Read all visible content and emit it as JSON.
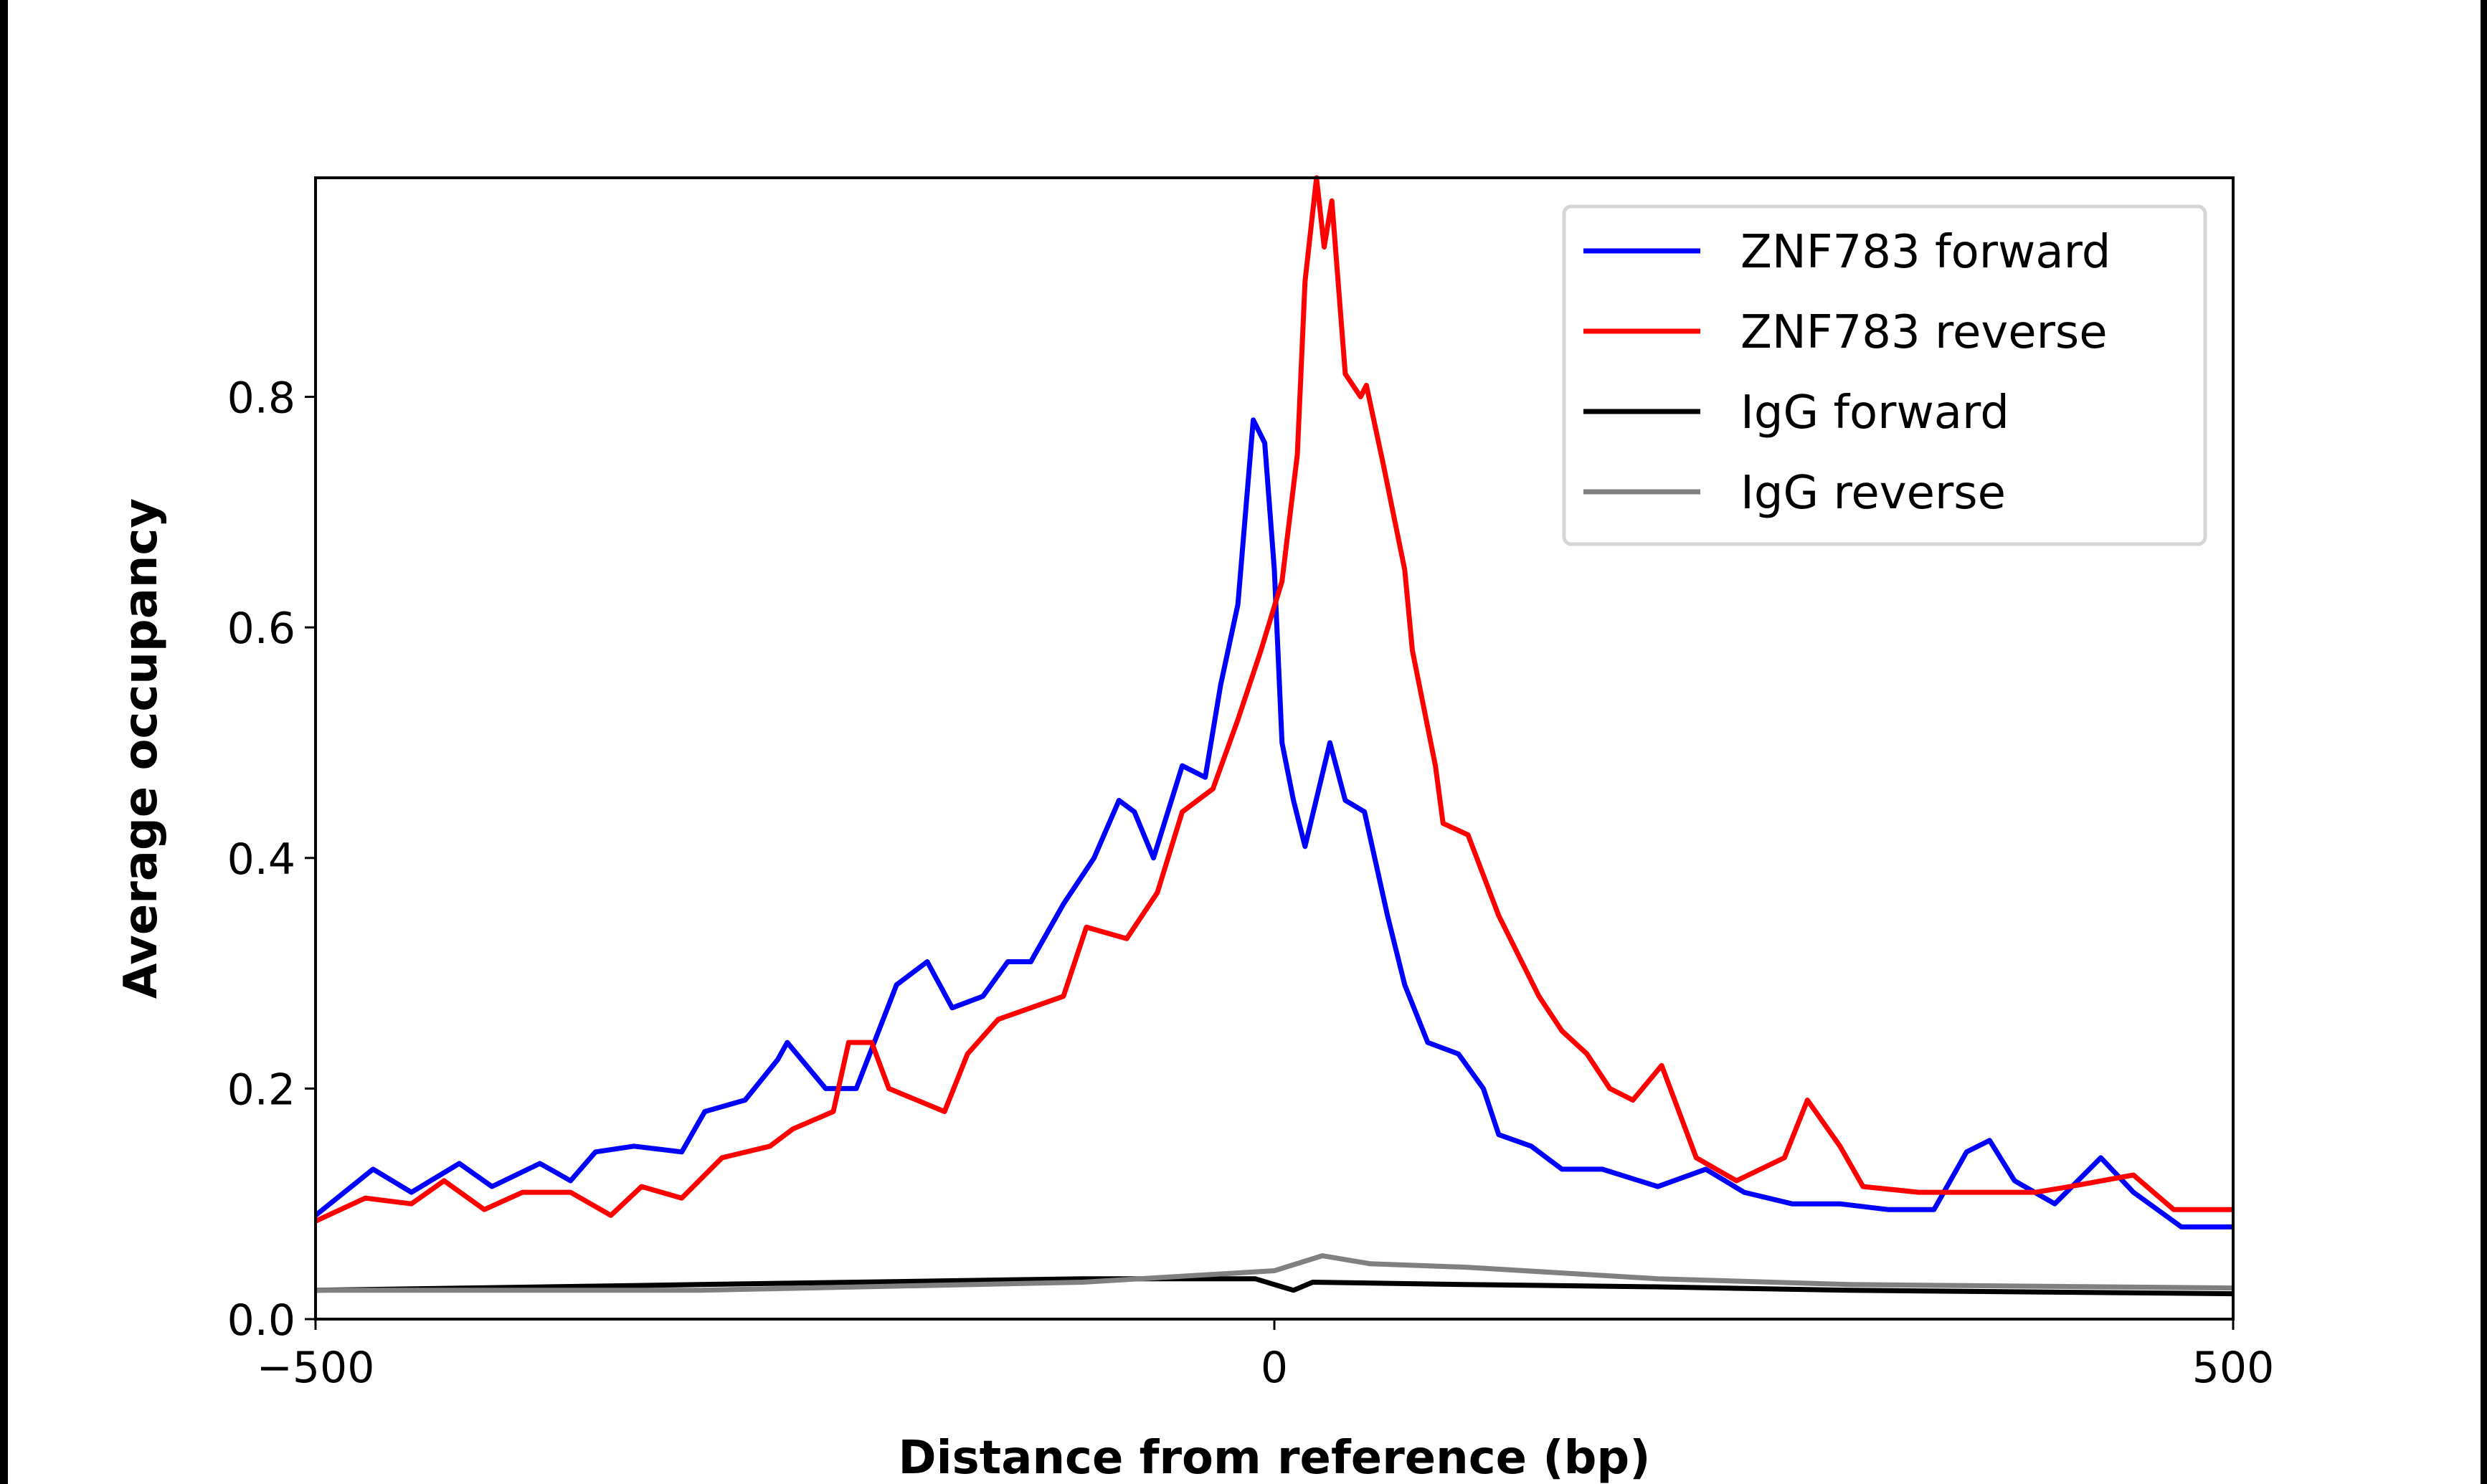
{
  "chart_data": {
    "type": "line",
    "title": "",
    "xlabel": "Distance from reference (bp)",
    "ylabel": "Average occupancy",
    "xlim": [
      -500,
      500
    ],
    "ylim": [
      0,
      0.99
    ],
    "xticks": [
      -500,
      0,
      500
    ],
    "xtick_labels": [
      "−500",
      "0",
      "500"
    ],
    "yticks": [
      0.0,
      0.2,
      0.4,
      0.6,
      0.8
    ],
    "ytick_labels": [
      "0.0",
      "0.2",
      "0.4",
      "0.6",
      "0.8"
    ],
    "grid": false,
    "legend_position": "top-right",
    "series": [
      {
        "name": "ZNF783 forward",
        "color": "#0000ff",
        "x": [
          -500,
          -470,
          -450,
          -425,
          -408,
          -383,
          -367,
          -354,
          -334,
          -309,
          -297,
          -276,
          -259,
          -254,
          -234,
          -218,
          -197,
          -181,
          -168,
          -152,
          -139,
          -127,
          -110,
          -94,
          -81,
          -73,
          -63,
          -48,
          -36,
          -28,
          -19,
          -11,
          -5,
          0,
          4,
          10,
          16,
          29,
          37,
          47,
          59,
          68,
          80,
          96,
          109,
          117,
          134,
          150,
          171,
          200,
          225,
          245,
          270,
          295,
          320,
          344,
          361,
          373,
          386,
          407,
          431,
          448,
          473,
          500
        ],
        "y": [
          0.09,
          0.13,
          0.11,
          0.135,
          0.115,
          0.135,
          0.12,
          0.145,
          0.15,
          0.145,
          0.18,
          0.19,
          0.225,
          0.24,
          0.2,
          0.2,
          0.29,
          0.31,
          0.27,
          0.28,
          0.31,
          0.31,
          0.36,
          0.4,
          0.45,
          0.44,
          0.4,
          0.48,
          0.47,
          0.55,
          0.62,
          0.78,
          0.76,
          0.65,
          0.5,
          0.45,
          0.41,
          0.5,
          0.45,
          0.44,
          0.35,
          0.29,
          0.24,
          0.23,
          0.2,
          0.16,
          0.15,
          0.13,
          0.13,
          0.115,
          0.13,
          0.11,
          0.1,
          0.1,
          0.095,
          0.095,
          0.145,
          0.155,
          0.12,
          0.1,
          0.14,
          0.11,
          0.08,
          0.08
        ]
      },
      {
        "name": "ZNF783 reverse",
        "color": "#ff0000",
        "x": [
          -500,
          -474,
          -450,
          -433,
          -412,
          -392,
          -367,
          -346,
          -330,
          -309,
          -288,
          -263,
          -251,
          -230,
          -222,
          -210,
          -201,
          -172,
          -160,
          -144,
          -127,
          -110,
          -98,
          -77,
          -61,
          -48,
          -32,
          -19,
          -7,
          4,
          12,
          16,
          22,
          26,
          30,
          37,
          45,
          48,
          57,
          68,
          72,
          84,
          88,
          101,
          117,
          129,
          138,
          150,
          163,
          175,
          187,
          202,
          220,
          241,
          266,
          278,
          295,
          307,
          336,
          369,
          397,
          415,
          448,
          469,
          500
        ],
        "y": [
          0.085,
          0.105,
          0.1,
          0.12,
          0.095,
          0.11,
          0.11,
          0.09,
          0.115,
          0.105,
          0.14,
          0.15,
          0.165,
          0.18,
          0.24,
          0.24,
          0.2,
          0.18,
          0.23,
          0.26,
          0.27,
          0.28,
          0.34,
          0.33,
          0.37,
          0.44,
          0.46,
          0.52,
          0.58,
          0.64,
          0.75,
          0.9,
          0.99,
          0.93,
          0.97,
          0.82,
          0.8,
          0.81,
          0.74,
          0.65,
          0.58,
          0.48,
          0.43,
          0.42,
          0.35,
          0.31,
          0.28,
          0.25,
          0.23,
          0.2,
          0.19,
          0.22,
          0.14,
          0.12,
          0.14,
          0.19,
          0.15,
          0.115,
          0.11,
          0.11,
          0.11,
          0.115,
          0.125,
          0.095,
          0.095
        ]
      },
      {
        "name": "IgG forward",
        "color": "#000000",
        "x": [
          -500,
          -300,
          -100,
          -10,
          10,
          20,
          100,
          200,
          300,
          500
        ],
        "y": [
          0.025,
          0.03,
          0.035,
          0.035,
          0.025,
          0.032,
          0.03,
          0.028,
          0.025,
          0.022
        ]
      },
      {
        "name": "IgG reverse",
        "color": "#808080",
        "x": [
          -500,
          -300,
          -100,
          -20,
          0,
          25,
          50,
          100,
          200,
          300,
          500
        ],
        "y": [
          0.025,
          0.025,
          0.032,
          0.04,
          0.042,
          0.055,
          0.048,
          0.045,
          0.035,
          0.03,
          0.027
        ]
      }
    ]
  }
}
